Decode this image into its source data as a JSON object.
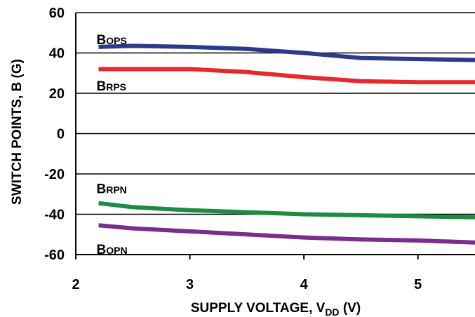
{
  "chart_data": {
    "type": "line",
    "title": "",
    "xlabel": {
      "main": "SUPPLY VOLTAGE, V",
      "sub": "DD",
      "unit": " (V)"
    },
    "ylabel": "SWITCH POINTS, B (G)",
    "xlim": [
      2,
      5.5
    ],
    "ylim": [
      -60,
      60
    ],
    "x_ticks": [
      "2",
      "3",
      "4",
      "5"
    ],
    "x_tick_values": [
      2,
      3,
      4,
      5
    ],
    "y_ticks": [
      "60",
      "40",
      "20",
      "0",
      "-20",
      "-40",
      "-60"
    ],
    "y_tick_values": [
      60,
      40,
      20,
      0,
      -20,
      -40,
      -60
    ],
    "grid": "horizontal",
    "series": [
      {
        "name": "BOPS",
        "label_big": "B",
        "label_small": "OPS",
        "color": "#2b3a8c",
        "label_at": [
          2.2,
          46.5
        ],
        "x": [
          2.2,
          2.5,
          3.0,
          3.5,
          4.0,
          4.5,
          5.0,
          5.5
        ],
        "y": [
          43,
          43.5,
          43,
          42,
          40,
          37.5,
          37,
          36.5
        ]
      },
      {
        "name": "BRPS",
        "label_big": "B",
        "label_small": "RPS",
        "color": "#e8282d",
        "label_at": [
          2.2,
          23.5
        ],
        "x": [
          2.2,
          2.5,
          3.0,
          3.5,
          4.0,
          4.5,
          5.0,
          5.5
        ],
        "y": [
          32,
          32,
          32,
          30.5,
          28,
          26,
          25.5,
          25.5
        ]
      },
      {
        "name": "BRPN",
        "label_big": "B",
        "label_small": "RPN",
        "color": "#1e8a45",
        "label_at": [
          2.2,
          -27.5
        ],
        "x": [
          2.2,
          2.5,
          3.0,
          3.5,
          4.0,
          4.5,
          5.0,
          5.5
        ],
        "y": [
          -34.5,
          -36.5,
          -38,
          -39,
          -40,
          -40.5,
          -41,
          -41.5
        ]
      },
      {
        "name": "BOPN",
        "label_big": "B",
        "label_small": "OPN",
        "color": "#7b2d8e",
        "label_at": [
          2.2,
          -57.5
        ],
        "x": [
          2.2,
          2.5,
          3.0,
          3.5,
          4.0,
          4.5,
          5.0,
          5.5
        ],
        "y": [
          -45.5,
          -47,
          -48.5,
          -50,
          -51.5,
          -52.5,
          -53,
          -54
        ]
      }
    ]
  }
}
